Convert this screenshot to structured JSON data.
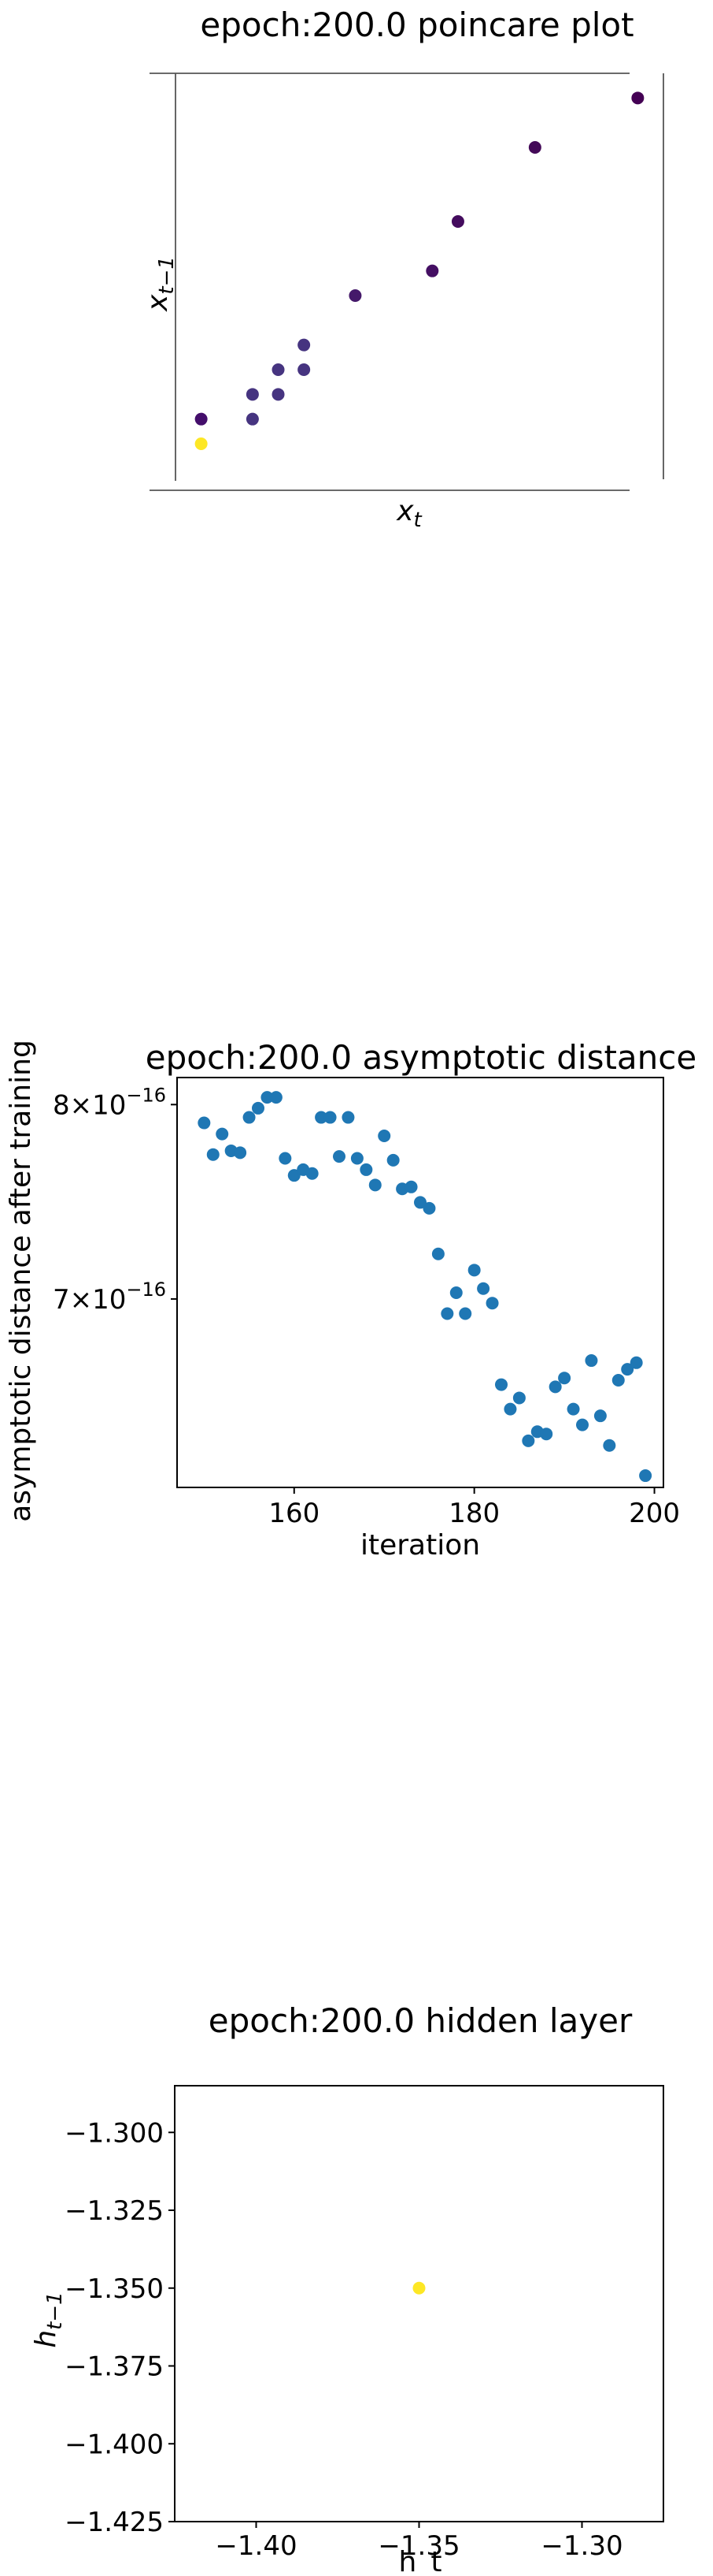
{
  "charts": {
    "poincare": {
      "title": "epoch:200.0 poincare plot",
      "xlabel_base": "x",
      "xlabel_sub": "t",
      "ylabel_base": "x",
      "ylabel_sub": "t−1"
    },
    "asymptotic": {
      "title": "epoch:200.0 asymptotic distance",
      "xlabel": "iteration",
      "ylabel": "asymptotic distance after training",
      "xticks": [
        "160",
        "180",
        "200"
      ],
      "yticks": [
        {
          "label": "8×10",
          "exp": "−16",
          "value": 8e-16
        },
        {
          "label": "7×10",
          "exp": "−16",
          "value": 7e-16
        }
      ]
    },
    "hidden": {
      "title": "epoch:200.0 hidden layer",
      "xlabel": "h_t",
      "ylabel_base": "h",
      "ylabel_sub": "t−1",
      "xticks": [
        "−1.40",
        "−1.35",
        "−1.30"
      ],
      "yticks": [
        "−1.300",
        "−1.325",
        "−1.350",
        "−1.375",
        "−1.400",
        "−1.425"
      ]
    }
  },
  "chart_data": [
    {
      "type": "scatter",
      "title": "epoch:200.0 poincare plot",
      "xlabel": "x_t",
      "ylabel": "x_{t-1}",
      "axes_ticks": false,
      "colormap": "viridis",
      "points": [
        {
          "x": 0.0,
          "y": 0.0,
          "color": "#fde725"
        },
        {
          "x": 0.0,
          "y": 0.1,
          "color": "#440e6b"
        },
        {
          "x": 0.1,
          "y": 0.1,
          "color": "#463480"
        },
        {
          "x": 0.1,
          "y": 0.2,
          "color": "#463480"
        },
        {
          "x": 0.15,
          "y": 0.2,
          "color": "#463480"
        },
        {
          "x": 0.15,
          "y": 0.3,
          "color": "#463480"
        },
        {
          "x": 0.2,
          "y": 0.3,
          "color": "#463480"
        },
        {
          "x": 0.2,
          "y": 0.4,
          "color": "#463480"
        },
        {
          "x": 0.3,
          "y": 0.6,
          "color": "#45196a"
        },
        {
          "x": 0.45,
          "y": 0.7,
          "color": "#440f63"
        },
        {
          "x": 0.5,
          "y": 0.9,
          "color": "#440c5e"
        },
        {
          "x": 0.65,
          "y": 1.2,
          "color": "#440a58"
        },
        {
          "x": 0.85,
          "y": 1.4,
          "color": "#440154"
        }
      ],
      "xlim": [
        -0.05,
        0.9
      ],
      "ylim": [
        -0.15,
        1.5
      ]
    },
    {
      "type": "scatter",
      "title": "epoch:200.0 asymptotic distance",
      "xlabel": "iteration",
      "ylabel": "asymptotic distance after training",
      "yscale": "log",
      "xlim": [
        147,
        201
      ],
      "ylim": [
        6.15e-16,
        8.15e-16
      ],
      "color": "#1f77b4",
      "x": [
        150,
        151,
        152,
        153,
        154,
        155,
        156,
        157,
        158,
        159,
        160,
        161,
        162,
        163,
        164,
        165,
        166,
        167,
        168,
        169,
        170,
        171,
        172,
        173,
        174,
        175,
        176,
        177,
        178,
        179,
        180,
        181,
        182,
        183,
        184,
        185,
        186,
        187,
        188,
        189,
        190,
        191,
        192,
        193,
        194,
        195,
        196,
        197,
        198,
        199
      ],
      "y": [
        7.9e-16,
        7.73e-16,
        7.84e-16,
        7.75e-16,
        7.74e-16,
        7.93e-16,
        7.98e-16,
        8.04e-16,
        8.04e-16,
        7.71e-16,
        7.62e-16,
        7.65e-16,
        7.63e-16,
        7.93e-16,
        7.93e-16,
        7.72e-16,
        7.93e-16,
        7.71e-16,
        7.65e-16,
        7.57e-16,
        7.83e-16,
        7.7e-16,
        7.55e-16,
        7.56e-16,
        7.48e-16,
        7.45e-16,
        7.22e-16,
        6.93e-16,
        7.03e-16,
        6.93e-16,
        7.14e-16,
        7.05e-16,
        6.98e-16,
        6.6e-16,
        6.49e-16,
        6.54e-16,
        6.35e-16,
        6.39e-16,
        6.38e-16,
        6.59e-16,
        6.63e-16,
        6.49e-16,
        6.42e-16,
        6.71e-16,
        6.46e-16,
        6.33e-16,
        6.62e-16,
        6.67e-16,
        6.7e-16,
        6.2e-16
      ]
    },
    {
      "type": "scatter",
      "title": "epoch:200.0 hidden layer",
      "xlabel": "h_t",
      "ylabel": "h_{t-1}",
      "xlim": [
        -1.425,
        -1.275
      ],
      "ylim": [
        -1.425,
        -1.285
      ],
      "points": [
        {
          "x": -1.35,
          "y": -1.35,
          "color": "#fde725"
        }
      ]
    }
  ]
}
